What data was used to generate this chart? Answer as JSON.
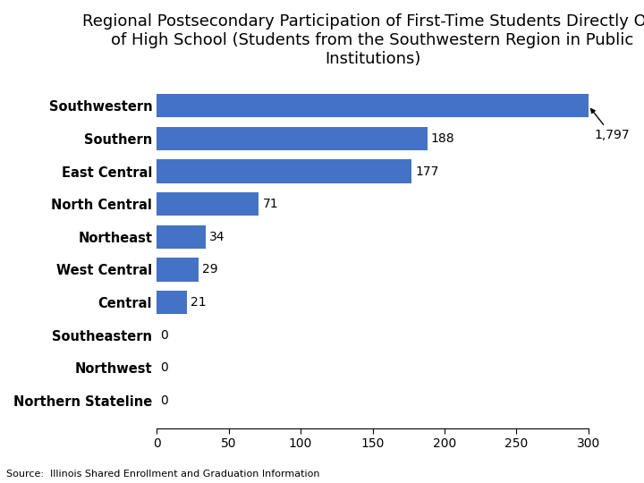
{
  "title": "Regional Postsecondary Participation of First-Time Students Directly Out\nof High School (Students from the Southwestern Region in Public\nInstitutions)",
  "categories": [
    "Northern Stateline",
    "Northwest",
    "Southeastern",
    "Central",
    "West Central",
    "Northeast",
    "North Central",
    "East Central",
    "Southern",
    "Southwestern"
  ],
  "values": [
    0,
    0,
    0,
    21,
    29,
    34,
    71,
    177,
    188,
    300
  ],
  "display_values": [
    "0",
    "0",
    "0",
    "21",
    "29",
    "34",
    "71",
    "177",
    "188"
  ],
  "bar_color": "#4472C4",
  "xlim": [
    0,
    300
  ],
  "annotation_value": "1,797",
  "source_text": "Source:  Illinois Shared Enrollment and Graduation Information",
  "title_fontsize": 13,
  "label_fontsize": 10.5,
  "tick_fontsize": 10,
  "source_fontsize": 8,
  "value_label_fontsize": 10,
  "background_color": "#ffffff"
}
